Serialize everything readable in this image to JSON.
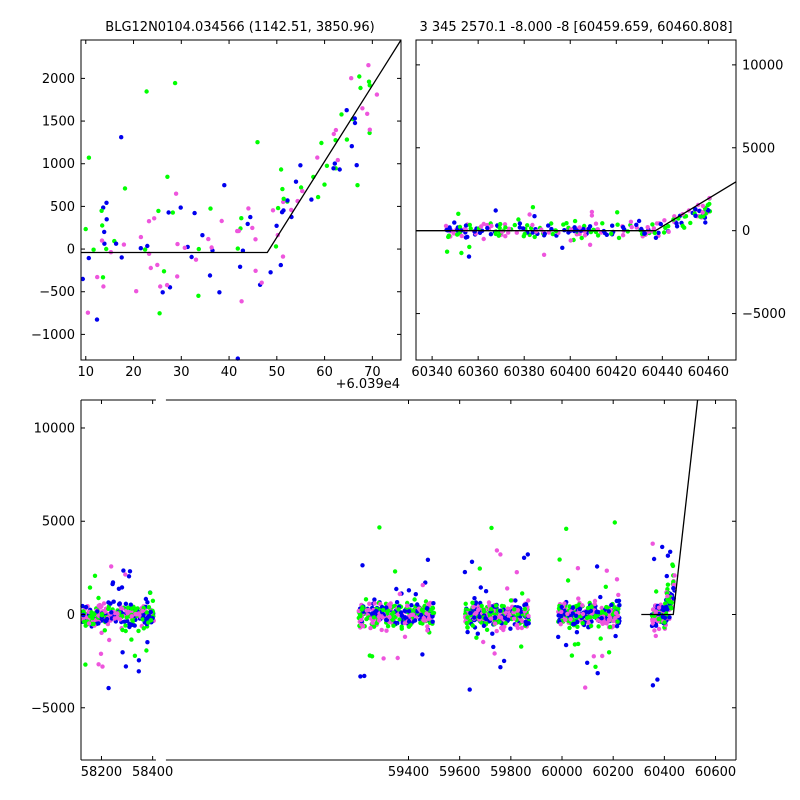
{
  "chart_data": [
    {
      "type": "scatter",
      "title": "BLG12N0104.034566 (1142.51, 3850.96)",
      "xlim": [
        9,
        76
      ],
      "ylim": [
        -1300,
        2450
      ],
      "x_ticks": [
        10,
        20,
        30,
        40,
        50,
        60,
        70
      ],
      "x_tick_labels": [
        "10",
        "20",
        "30",
        "40",
        "50",
        "60",
        "70"
      ],
      "y_ticks": [
        -1000,
        -500,
        0,
        500,
        1000,
        1500,
        2000
      ],
      "y_tick_labels": [
        "−1000",
        "−500",
        "0",
        "500",
        "1000",
        "1500",
        "2000"
      ],
      "y_axis_side": "left",
      "offset_text": "+6.039e4",
      "fit_line": [
        [
          9,
          -40
        ],
        [
          48,
          -40
        ],
        [
          76,
          2450
        ]
      ],
      "cloud": {
        "x_min": 9,
        "x_max": 72,
        "break": 48,
        "base": 80,
        "spread": 600,
        "slope": 75,
        "tail_spread": 500,
        "n": 150
      },
      "colors": {
        "green": "#00ff00",
        "blue": "#0000ee",
        "magenta": "#ee55dd",
        "line": "#000000"
      }
    },
    {
      "type": "scatter",
      "title": "3 345 2570.1 -8.000 -8 [60459.659, 60460.808]",
      "xlim": [
        60333,
        60472
      ],
      "ylim": [
        -7800,
        11500
      ],
      "x_ticks": [
        60340,
        60360,
        60380,
        60400,
        60420,
        60440,
        60460
      ],
      "x_tick_labels": [
        "60340",
        "60360",
        "60380",
        "60400",
        "60420",
        "60440",
        "60460"
      ],
      "y_ticks": [
        -5000,
        0,
        5000,
        10000
      ],
      "y_tick_labels": [
        "−5000",
        "0",
        "5000",
        "10000"
      ],
      "y_axis_side": "right",
      "fit_line": [
        [
          60333,
          0
        ],
        [
          60437,
          0
        ],
        [
          60472,
          2950
        ]
      ],
      "cloud": {
        "x_min": 60346,
        "x_max": 60461,
        "break": 60437,
        "base": 0,
        "spread": 350,
        "slope": 55,
        "tail_spread": 450,
        "n": 260
      },
      "colors": {
        "green": "#00ff00",
        "blue": "#0000ee",
        "magenta": "#ee55dd",
        "line": "#000000"
      }
    },
    {
      "type": "scatter",
      "xlim": [
        58120,
        60680
      ],
      "ylim": [
        -7800,
        11500
      ],
      "x_ticks": [
        58200,
        58400,
        59400,
        59600,
        59800,
        60000,
        60200,
        60400,
        60600
      ],
      "x_tick_labels": [
        "58200",
        "58400",
        "59400",
        "59600",
        "59800",
        "60000",
        "60200",
        "60400",
        "60600"
      ],
      "y_ticks": [
        -5000,
        0,
        5000,
        10000
      ],
      "y_tick_labels": [
        "−5000",
        "0",
        "5000",
        "10000"
      ],
      "y_axis_side": "left",
      "fit_line": [
        [
          60310,
          0
        ],
        [
          60435,
          0
        ],
        [
          60530,
          11500
        ]
      ],
      "seasons": [
        {
          "x_min": 58125,
          "x_max": 58405,
          "n": 300
        },
        {
          "x_min": 59205,
          "x_max": 59500,
          "n": 330
        },
        {
          "x_min": 59620,
          "x_max": 59870,
          "n": 310
        },
        {
          "x_min": 59985,
          "x_max": 60225,
          "n": 310
        },
        {
          "x_min": 60350,
          "x_max": 60440,
          "n": 170
        }
      ],
      "colors": {
        "green": "#00ff00",
        "blue": "#0000ee",
        "magenta": "#ee55dd",
        "line": "#000000"
      }
    }
  ]
}
